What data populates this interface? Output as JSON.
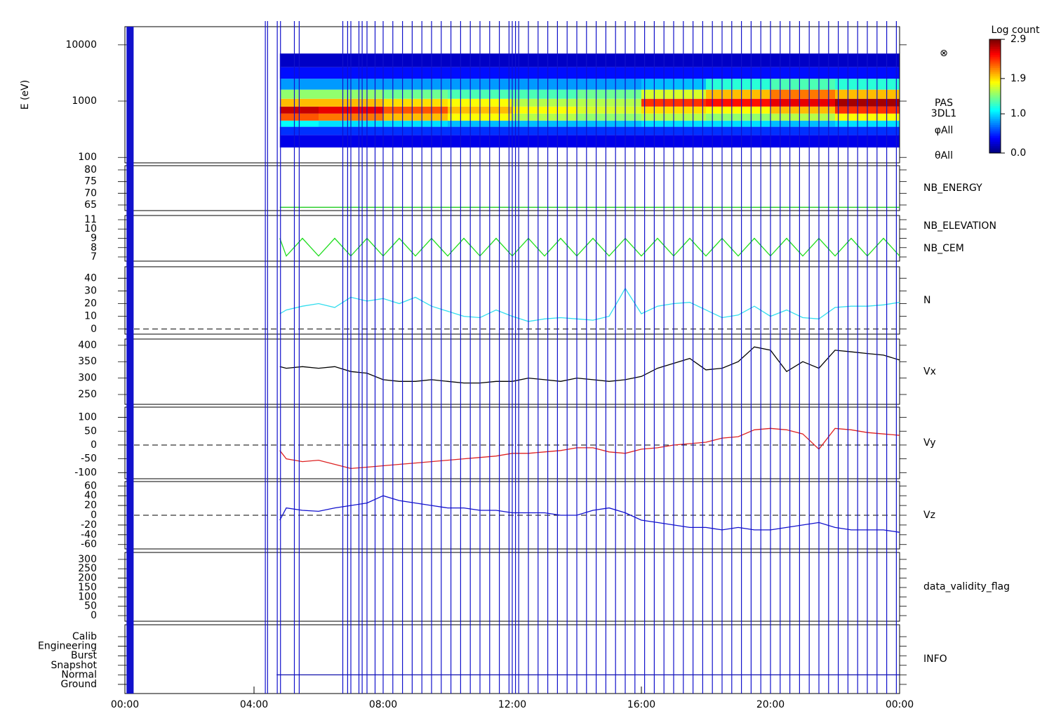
{
  "chart_data": [
    {
      "type": "spectrogram",
      "ylabel": "E (eV)",
      "log_y": true,
      "ylim": [
        80,
        21000
      ],
      "yticks": [
        100,
        1000,
        10000
      ],
      "x_edges": [
        4.8,
        6,
        8,
        10,
        12,
        14,
        16,
        18,
        20,
        22,
        24
      ],
      "y_edges": [
        150,
        250,
        350,
        450,
        600,
        800,
        1100,
        1600,
        2500,
        4000,
        7000
      ],
      "z": [
        [
          0.3,
          0.3,
          0.3,
          0.3,
          0.3,
          0.3,
          0.3,
          0.3,
          0.3,
          0.3
        ],
        [
          0.5,
          0.5,
          0.5,
          0.5,
          0.5,
          0.5,
          0.5,
          0.5,
          0.5,
          0.5
        ],
        [
          1.1,
          1.0,
          1.0,
          0.9,
          0.9,
          0.9,
          1.0,
          1.0,
          0.9,
          1.0
        ],
        [
          2.3,
          2.2,
          2.0,
          1.8,
          1.6,
          1.5,
          1.6,
          1.5,
          1.6,
          1.8
        ],
        [
          2.7,
          2.6,
          2.3,
          2.0,
          1.8,
          1.7,
          1.9,
          1.8,
          2.0,
          2.4
        ],
        [
          2.0,
          2.0,
          1.9,
          1.8,
          1.6,
          1.6,
          2.4,
          2.5,
          2.6,
          2.8
        ],
        [
          1.5,
          1.5,
          1.4,
          1.3,
          1.3,
          1.4,
          1.7,
          2.0,
          2.2,
          2.0
        ],
        [
          0.8,
          0.8,
          0.8,
          0.8,
          0.8,
          0.8,
          0.9,
          1.2,
          1.3,
          1.2
        ],
        [
          0.4,
          0.4,
          0.4,
          0.4,
          0.4,
          0.4,
          0.4,
          0.4,
          0.4,
          0.4
        ],
        [
          0.2,
          0.2,
          0.2,
          0.2,
          0.2,
          0.2,
          0.2,
          0.2,
          0.2,
          0.2
        ]
      ],
      "annotations": [
        "⊗",
        "PAS",
        "3DL1",
        "φAll",
        "θAll"
      ],
      "colorbar": {
        "title": "Log count",
        "lim": [
          0,
          2.9
        ],
        "ticks": [
          {
            "value": 0,
            "label": "0.0"
          },
          {
            "value": 1,
            "label": "1.0"
          },
          {
            "value": 1.9,
            "label": "1.9"
          },
          {
            "value": 2.9,
            "label": "2.9"
          }
        ]
      }
    },
    {
      "type": "line",
      "ylim": [
        62.6,
        81.8
      ],
      "yticks": [
        65,
        70,
        75,
        80
      ],
      "series": [
        {
          "name": "NB_ENERGY",
          "color": "#22cc22",
          "x": [
            4.8,
            24
          ],
          "values": [
            64,
            64
          ]
        }
      ]
    },
    {
      "type": "line",
      "ylim": [
        6.55,
        11.45
      ],
      "yticks": [
        7,
        8,
        9,
        10,
        11
      ],
      "series": [
        {
          "name": "NB_ELEVATION",
          "color": "#22dd22",
          "x": [
            4.8,
            5.0,
            5.5,
            6.0,
            6.5,
            7.0,
            7.5,
            8.0,
            8.5,
            9.0,
            9.5,
            10.0,
            10.5,
            11.0,
            11.5,
            12.0,
            12.5,
            13.0,
            13.5,
            14.0,
            14.5,
            15.0,
            15.5,
            16.0,
            16.5,
            17.0,
            17.5,
            18.0,
            18.5,
            19.0,
            19.5,
            20.0,
            20.5,
            21.0,
            21.5,
            22.0,
            22.5,
            23.0,
            23.5,
            24.0
          ],
          "values": [
            9,
            7.1,
            9,
            7.1,
            9,
            7.1,
            9,
            7.1,
            9,
            7.1,
            9,
            7.1,
            9,
            7.1,
            9,
            7.1,
            9,
            7.1,
            9,
            7.1,
            9,
            7.1,
            9,
            7.1,
            9,
            7.1,
            9,
            7.1,
            9,
            7.1,
            9,
            7.1,
            9,
            7.1,
            9,
            7.1,
            9,
            7.1,
            9,
            7.1
          ]
        },
        {
          "name": "NB_CEM",
          "color": "#2222bb",
          "x": [],
          "values": []
        }
      ]
    },
    {
      "type": "line",
      "ylim": [
        -4,
        49
      ],
      "yticks": [
        0,
        10,
        20,
        30,
        40
      ],
      "zero_line": true,
      "series": [
        {
          "name": "N",
          "color": "#33ddee",
          "x": [
            4.8,
            5.0,
            5.5,
            6.0,
            6.5,
            7.0,
            7.5,
            8.0,
            8.5,
            9.0,
            9.5,
            10.0,
            10.5,
            11.0,
            11.5,
            12.0,
            12.5,
            13.0,
            13.5,
            14.0,
            14.5,
            15.0,
            15.5,
            16.0,
            16.5,
            17.0,
            17.5,
            18.0,
            18.5,
            19.0,
            19.5,
            20.0,
            20.5,
            21.0,
            21.5,
            22.0,
            22.5,
            23.0,
            23.5,
            24.0
          ],
          "values": [
            12,
            15,
            18,
            20,
            17,
            25,
            22,
            24,
            20,
            25,
            18,
            14,
            10,
            9,
            15,
            10,
            6,
            8,
            9,
            8,
            7,
            10,
            32,
            12,
            18,
            20,
            21,
            15,
            9,
            11,
            18,
            10,
            15,
            9,
            8,
            17,
            18,
            18,
            19,
            21
          ]
        }
      ]
    },
    {
      "type": "line",
      "ylim": [
        220,
        419
      ],
      "yticks": [
        250,
        300,
        350,
        400
      ],
      "series": [
        {
          "name": "Vx",
          "color": "#000000",
          "x": [
            4.8,
            5.0,
            5.5,
            6.0,
            6.5,
            7.0,
            7.5,
            8.0,
            8.5,
            9.0,
            9.5,
            10.0,
            10.5,
            11.0,
            11.5,
            12.0,
            12.5,
            13.0,
            13.5,
            14.0,
            14.5,
            15.0,
            15.5,
            16.0,
            16.5,
            17.0,
            17.5,
            18.0,
            18.5,
            19.0,
            19.5,
            20.0,
            20.5,
            21.0,
            21.5,
            22.0,
            22.5,
            23.0,
            23.5,
            24.0
          ],
          "values": [
            335,
            330,
            335,
            330,
            335,
            320,
            315,
            295,
            290,
            290,
            295,
            290,
            285,
            285,
            290,
            290,
            300,
            295,
            290,
            300,
            295,
            290,
            295,
            305,
            330,
            345,
            360,
            325,
            330,
            350,
            395,
            385,
            320,
            350,
            330,
            385,
            380,
            375,
            370,
            355
          ]
        }
      ]
    },
    {
      "type": "line",
      "ylim": [
        -122,
        137
      ],
      "yticks": [
        -100,
        -50,
        0,
        50,
        100
      ],
      "zero_line": true,
      "series": [
        {
          "name": "Vy",
          "color": "#dd2222",
          "x": [
            4.8,
            5.0,
            5.5,
            6.0,
            6.5,
            7.0,
            7.5,
            8.0,
            8.5,
            9.0,
            9.5,
            10.0,
            10.5,
            11.0,
            11.5,
            12.0,
            12.5,
            13.0,
            13.5,
            14.0,
            14.5,
            15.0,
            15.5,
            16.0,
            16.5,
            17.0,
            17.5,
            18.0,
            18.5,
            19.0,
            19.5,
            20.0,
            20.5,
            21.0,
            21.5,
            22.0,
            22.5,
            23.0,
            23.5,
            24.0
          ],
          "values": [
            -20,
            -50,
            -60,
            -55,
            -70,
            -85,
            -80,
            -75,
            -70,
            -65,
            -60,
            -55,
            -50,
            -45,
            -40,
            -30,
            -30,
            -25,
            -20,
            -10,
            -10,
            -25,
            -30,
            -15,
            -10,
            0,
            5,
            10,
            25,
            30,
            55,
            60,
            55,
            40,
            -15,
            60,
            55,
            45,
            40,
            35
          ]
        }
      ]
    },
    {
      "type": "line",
      "ylim": [
        -69,
        69
      ],
      "yticks": [
        -60,
        -40,
        -20,
        0,
        20,
        40,
        60
      ],
      "zero_line": true,
      "series": [
        {
          "name": "Vz",
          "color": "#1111cc",
          "x": [
            4.8,
            5.0,
            5.5,
            6.0,
            6.5,
            7.0,
            7.5,
            8.0,
            8.5,
            9.0,
            9.5,
            10.0,
            10.5,
            11.0,
            11.5,
            12.0,
            12.5,
            13.0,
            13.5,
            14.0,
            14.5,
            15.0,
            15.5,
            16.0,
            16.5,
            17.0,
            17.5,
            18.0,
            18.5,
            19.0,
            19.5,
            20.0,
            20.5,
            21.0,
            21.5,
            22.0,
            22.5,
            23.0,
            23.5,
            24.0
          ],
          "values": [
            -10,
            15,
            10,
            8,
            15,
            20,
            25,
            40,
            30,
            25,
            20,
            15,
            15,
            10,
            10,
            5,
            5,
            5,
            0,
            0,
            10,
            15,
            5,
            -10,
            -15,
            -20,
            -25,
            -25,
            -30,
            -25,
            -30,
            -30,
            -25,
            -20,
            -15,
            -25,
            -30,
            -30,
            -30,
            -35
          ]
        }
      ]
    },
    {
      "type": "line",
      "ylim": [
        -30,
        337
      ],
      "yticks": [
        0,
        50,
        100,
        150,
        200,
        250,
        300
      ],
      "series": [
        {
          "name": "data_validity_flag",
          "color": "#000000",
          "x": [],
          "values": []
        }
      ]
    },
    {
      "type": "line",
      "ylim": [
        -0.96,
        6.25
      ],
      "yticks": [
        {
          "value": 0,
          "label": "Ground"
        },
        {
          "value": 1,
          "label": "Normal"
        },
        {
          "value": 2,
          "label": "Snapshot"
        },
        {
          "value": 3,
          "label": "Burst"
        },
        {
          "value": 4,
          "label": "Engineering"
        },
        {
          "value": 5,
          "label": "Calib"
        }
      ],
      "series": [
        {
          "name": "INFO",
          "color": "#1111aa",
          "x": [
            4.7,
            24
          ],
          "values": [
            1,
            1
          ]
        }
      ],
      "xlim": [
        0,
        24
      ],
      "xticks": [
        {
          "value": 0,
          "label": "00:00"
        },
        {
          "value": 4,
          "label": "04:00"
        },
        {
          "value": 8,
          "label": "08:00"
        },
        {
          "value": 12,
          "label": "12:00"
        },
        {
          "value": 16,
          "label": "16:00"
        },
        {
          "value": 20,
          "label": "20:00"
        },
        {
          "value": 24,
          "label": "00:00"
        }
      ]
    }
  ],
  "event_lines": {
    "color": "#1111cc",
    "band": [
      0.05,
      0.27
    ],
    "times": [
      4.35,
      4.42,
      4.72,
      4.82,
      5.25,
      5.4,
      6.75,
      6.9,
      7.0,
      7.25,
      7.35,
      7.5,
      7.75,
      8.0,
      8.3,
      8.6,
      8.9,
      9.2,
      9.5,
      9.8,
      10.1,
      10.4,
      10.7,
      11.0,
      11.3,
      11.6,
      11.9,
      12.0,
      12.1,
      12.2,
      12.5,
      12.8,
      13.1,
      13.4,
      13.7,
      14.0,
      14.3,
      14.6,
      14.9,
      15.2,
      15.5,
      15.8,
      16.1,
      16.4,
      16.7,
      17.0,
      17.3,
      17.6,
      17.9,
      18.2,
      18.5,
      18.8,
      19.1,
      19.4,
      19.7,
      20.0,
      20.3,
      20.6,
      20.9,
      21.2,
      21.5,
      21.8,
      22.1,
      22.4,
      22.7,
      23.0,
      23.3,
      23.6,
      23.9
    ]
  }
}
